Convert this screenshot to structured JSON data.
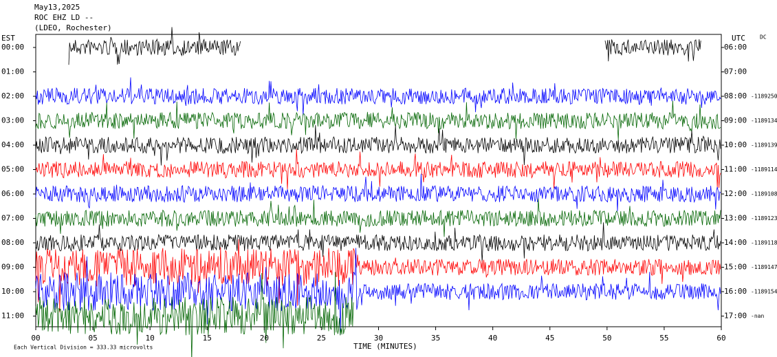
{
  "header": {
    "date": "May13,2025",
    "station": "ROC EHZ LD --",
    "network": "(LDEO, Rochester)"
  },
  "left_zone": "EST",
  "right_zone": "UTC",
  "dc_heading": "DC",
  "rows": [
    {
      "left": "00:00",
      "right": "06:00",
      "color": "#000000"
    },
    {
      "left": "01:00",
      "right": "07:00",
      "color": "#ff0000"
    },
    {
      "left": "02:00",
      "right": "08:00",
      "dc": "-1189250",
      "color": "#0000ff"
    },
    {
      "left": "03:00",
      "right": "09:00",
      "dc": "-1189134",
      "color": "#006400"
    },
    {
      "left": "04:00",
      "right": "10:00",
      "dc": "-1189139",
      "color": "#000000"
    },
    {
      "left": "05:00",
      "right": "11:00",
      "dc": "-1189114",
      "color": "#ff0000"
    },
    {
      "left": "06:00",
      "right": "12:00",
      "dc": "-1189108",
      "color": "#0000ff"
    },
    {
      "left": "07:00",
      "right": "13:00",
      "dc": "-1189123",
      "color": "#006400"
    },
    {
      "left": "08:00",
      "right": "14:00",
      "dc": "-1189118",
      "color": "#000000"
    },
    {
      "left": "09:00",
      "right": "15:00",
      "dc": "-1189147",
      "color": "#ff0000"
    },
    {
      "left": "10:00",
      "right": "16:00",
      "dc": "-1189154",
      "color": "#0000ff"
    },
    {
      "left": "11:00",
      "right": "17:00",
      "dc": "-nan",
      "color": "#006400"
    }
  ],
  "x_ticks": [
    "00",
    "05",
    "10",
    "15",
    "20",
    "25",
    "30",
    "35",
    "40",
    "45",
    "50",
    "55",
    "60"
  ],
  "x_label": "TIME (MINUTES)",
  "footer": "Each Vertical Division = 333.33 microvolts"
}
